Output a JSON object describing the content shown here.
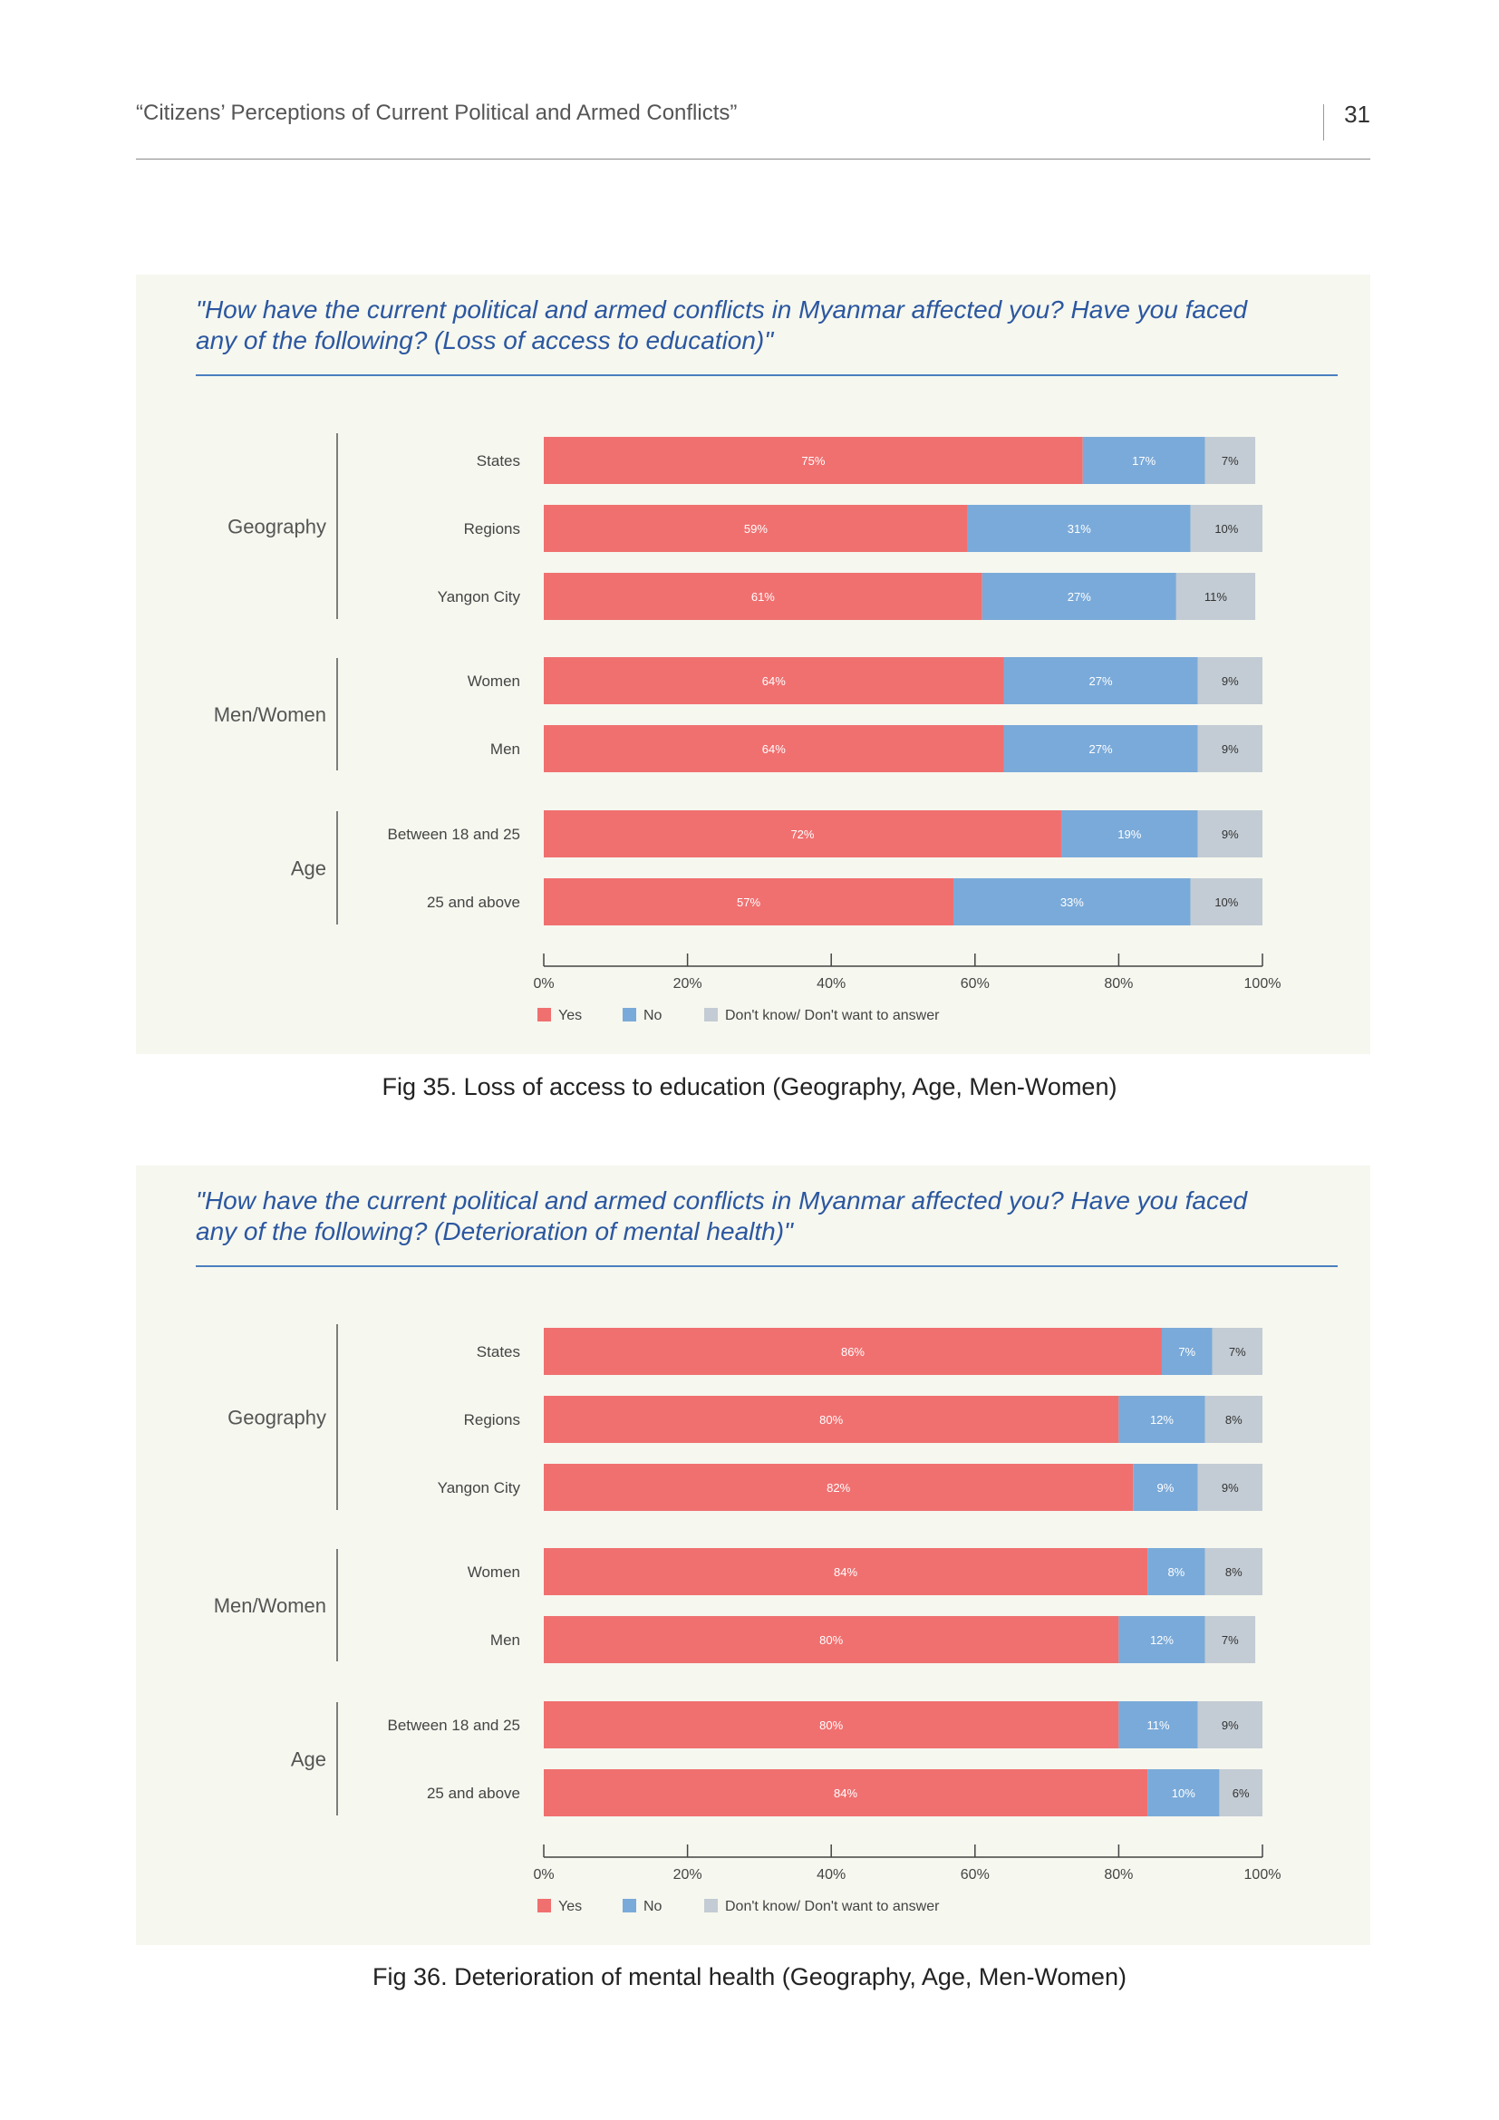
{
  "header": {
    "title": "“Citizens’ Perceptions of Current Political and Armed Conflicts”",
    "page_number": "31"
  },
  "colors": {
    "yes": "#f07070",
    "no": "#7aaad9",
    "dk": "#c3ccd4"
  },
  "chart_data": [
    {
      "type": "bar",
      "orientation": "horizontal",
      "stacked": true,
      "title": "\"How have the current political and armed conflicts in Myanmar affected you? Have you faced any of the following? (Loss of access to education)\"",
      "caption": "Fig 35. Loss of access to education (Geography, Age, Men-Women)",
      "groups": [
        {
          "name": "Geography",
          "categories": [
            "States",
            "Regions",
            "Yangon City"
          ]
        },
        {
          "name": "Men/Women",
          "categories": [
            "Women",
            "Men"
          ]
        },
        {
          "name": "Age",
          "categories": [
            "Between 18 and 25",
            "25 and above"
          ]
        }
      ],
      "categories": [
        "States",
        "Regions",
        "Yangon City",
        "Women",
        "Men",
        "Between 18 and 25",
        "25 and above"
      ],
      "series": [
        {
          "name": "Yes",
          "values": [
            75,
            59,
            61,
            64,
            64,
            72,
            57
          ]
        },
        {
          "name": "No",
          "values": [
            17,
            31,
            27,
            27,
            27,
            19,
            33
          ]
        },
        {
          "name": "Don't know/ Don't want to answer",
          "values": [
            7,
            10,
            11,
            9,
            9,
            9,
            10
          ]
        }
      ],
      "xticks": [
        "0%",
        "20%",
        "40%",
        "60%",
        "80%",
        "100%"
      ],
      "xlim": [
        0,
        100
      ],
      "legend_position": "bottom"
    },
    {
      "type": "bar",
      "orientation": "horizontal",
      "stacked": true,
      "title": "\"How have the current political and armed conflicts in Myanmar affected you? Have you faced any of the following? (Deterioration of mental health)\"",
      "caption": "Fig 36. Deterioration of mental health (Geography, Age, Men-Women)",
      "groups": [
        {
          "name": "Geography",
          "categories": [
            "States",
            "Regions",
            "Yangon City"
          ]
        },
        {
          "name": "Men/Women",
          "categories": [
            "Women",
            "Men"
          ]
        },
        {
          "name": "Age",
          "categories": [
            "Between 18 and 25",
            "25 and above"
          ]
        }
      ],
      "categories": [
        "States",
        "Regions",
        "Yangon City",
        "Women",
        "Men",
        "Between 18 and 25",
        "25 and above"
      ],
      "series": [
        {
          "name": "Yes",
          "values": [
            86,
            80,
            82,
            84,
            80,
            80,
            84
          ]
        },
        {
          "name": "No",
          "values": [
            7,
            12,
            9,
            8,
            12,
            11,
            10
          ]
        },
        {
          "name": "Don't know/ Don't want to answer",
          "values": [
            7,
            8,
            9,
            8,
            7,
            9,
            6
          ]
        }
      ],
      "xticks": [
        "0%",
        "20%",
        "40%",
        "60%",
        "80%",
        "100%"
      ],
      "xlim": [
        0,
        100
      ],
      "legend_position": "bottom"
    }
  ]
}
